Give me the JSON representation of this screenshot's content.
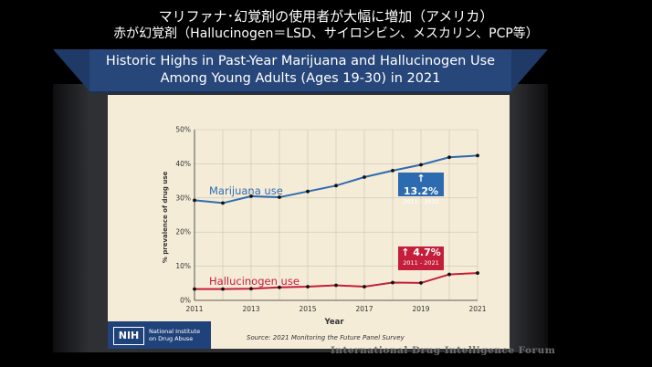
{
  "captions": {
    "line1": "マリファナ･幻覚剤の使用者が大幅に増加（アメリカ）",
    "line2": "赤が幻覚剤（Hallucinogen＝LSD、サイロシビン、メスカリン、PCP等）"
  },
  "chart_data": {
    "type": "line",
    "title": "Historic Highs in Past-Year Marijuana and Hallucinogen Use",
    "subtitle": "Among Young Adults (Ages 19-30) in 2021",
    "xlabel": "Year",
    "ylabel": "% prevalence of drug use",
    "x": [
      2011,
      2012,
      2013,
      2014,
      2015,
      2016,
      2017,
      2018,
      2019,
      2020,
      2021
    ],
    "xticks": [
      2011,
      2013,
      2015,
      2017,
      2019,
      2021
    ],
    "yticks": [
      "0%",
      "10%",
      "20%",
      "30%",
      "40%",
      "50%"
    ],
    "ylim": [
      0,
      50
    ],
    "grid": true,
    "series": [
      {
        "name": "Marijuana use",
        "color": "#2d6bb0",
        "values": [
          29.3,
          28.5,
          30.5,
          30.2,
          31.9,
          33.6,
          36.1,
          38.0,
          39.7,
          41.9,
          42.4
        ]
      },
      {
        "name": "Hallucinogen use",
        "color": "#c41e3a",
        "values": [
          3.3,
          3.3,
          3.4,
          3.8,
          4.0,
          4.4,
          4.0,
          5.2,
          5.1,
          7.6,
          8.0
        ]
      }
    ],
    "annotations": [
      {
        "series": "Marijuana use",
        "value": "13.2%",
        "range": "2011 - 2021"
      },
      {
        "series": "Hallucinogen use",
        "value": "4.7%",
        "range": "2011 - 2021"
      }
    ],
    "source": "Source: 2021 Monitoring the Future Panel Survey"
  },
  "branding": {
    "nih_logo": "NIH",
    "nih_name_line1": "National Institute",
    "nih_name_line2": "on Drug Abuse",
    "watermark": "International Drug Intelligence Forum"
  }
}
